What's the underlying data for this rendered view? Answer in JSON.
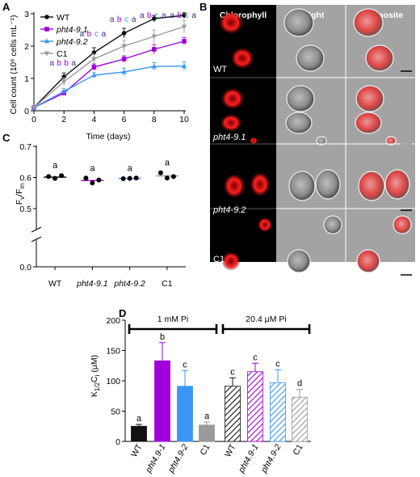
{
  "panel_letters": [
    "A",
    "B",
    "C",
    "D"
  ],
  "colors": {
    "WT": "#111111",
    "pht4-9.1": "#a100dc",
    "pht4-9.2": "#3a97f5",
    "C1": "#9a9a9a",
    "letter_a": "#3a2a8a",
    "letter_b": "#a100dc",
    "letter_c": "#3a97f5"
  },
  "chart_data": [
    {
      "panel": "A",
      "type": "line",
      "x": [
        0,
        2,
        4,
        6,
        8,
        10
      ],
      "xlabel": "Time (days)",
      "ylabel": "Cell count (10⁶ cells mL⁻¹)",
      "xlim": [
        0,
        10
      ],
      "ylim": [
        0,
        3
      ],
      "xticks": [
        "0",
        "2",
        "4",
        "6",
        "8",
        "10"
      ],
      "yticks": [
        "0",
        "1",
        "2",
        "3"
      ],
      "legend_position": "top-left",
      "series": [
        {
          "name": "WT",
          "marker": "circle",
          "values": [
            0.1,
            1.05,
            1.8,
            2.4,
            2.85,
            2.95
          ],
          "errors": [
            0.03,
            0.12,
            0.15,
            0.15,
            0.1,
            0.08
          ]
        },
        {
          "name": "pht4-9.1",
          "marker": "square",
          "values": [
            0.1,
            0.55,
            1.35,
            1.6,
            1.9,
            2.15
          ],
          "errors": [
            0.03,
            0.06,
            0.1,
            0.1,
            0.15,
            0.12
          ]
        },
        {
          "name": "pht4-9.2",
          "marker": "triangle",
          "values": [
            0.1,
            0.6,
            1.1,
            1.2,
            1.37,
            1.38
          ],
          "errors": [
            0.03,
            0.08,
            0.08,
            0.12,
            0.12,
            0.13
          ]
        },
        {
          "name": "C1",
          "marker": "triangle-down",
          "values": [
            0.1,
            0.9,
            1.6,
            2.0,
            2.3,
            2.6
          ],
          "errors": [
            0.03,
            0.12,
            0.15,
            0.18,
            0.2,
            0.2
          ]
        }
      ],
      "significance": [
        {
          "day": 2,
          "letters": [
            "a",
            "b",
            "b",
            "a"
          ],
          "y": 1.4
        },
        {
          "day": 4,
          "letters": [
            "a",
            "b",
            "c",
            "a"
          ],
          "y": 2.3
        },
        {
          "day": 6,
          "letters": [
            "a",
            "b",
            "c",
            "a"
          ],
          "y": 2.75
        },
        {
          "day": 8,
          "letters": [
            "a",
            "b",
            "c",
            "a"
          ],
          "y": 3.15
        },
        {
          "day": 10,
          "letters": [
            "a",
            "b",
            "c",
            "a"
          ],
          "y": 3.15
        }
      ]
    },
    {
      "panel": "C",
      "type": "scatter",
      "ylabel_main": "F",
      "ylabel_sub1": "v",
      "ylabel_slash": "/F",
      "ylabel_sub2": "m",
      "ylim": [
        0,
        0.7
      ],
      "yticks": [
        "0.0",
        "0.5",
        "0.6",
        "0.7"
      ],
      "axis_break": true,
      "categories": [
        "WT",
        "pht4-9.1",
        "pht4-9.2",
        "C1"
      ],
      "points": [
        [
          0.603,
          0.597,
          0.606
        ],
        [
          0.598,
          0.582,
          0.592
        ],
        [
          0.596,
          0.597,
          0.598
        ],
        [
          0.615,
          0.598,
          0.603
        ]
      ],
      "means": [
        0.601,
        0.59,
        0.597,
        0.605
      ],
      "letters": [
        "a",
        "a",
        "a",
        "a"
      ]
    },
    {
      "panel": "D",
      "type": "bar",
      "ylabel_main": "K",
      "ylabel_sub": "1/2",
      "ylabel_rest": "C",
      "ylabel_sub2": "i",
      "ylabel_unit": " (μM)",
      "ylim": [
        0,
        200
      ],
      "yticks": [
        "0",
        "50",
        "100",
        "150",
        "200"
      ],
      "categories": [
        "WT",
        "pht4.9-1",
        "pht4.9-2",
        "C1",
        "WT",
        "pht4.9-1",
        "pht4.9-2",
        "C1"
      ],
      "values": [
        25,
        133,
        91,
        27,
        91,
        115,
        97,
        73
      ],
      "errors": [
        3,
        30,
        26,
        5,
        14,
        14,
        21,
        13
      ],
      "letters": [
        "a",
        "b",
        "c",
        "a",
        "c",
        "c",
        "c",
        "d"
      ],
      "hatched": [
        false,
        false,
        false,
        false,
        true,
        true,
        true,
        true
      ],
      "groups": [
        {
          "label": "1 mM Pi",
          "from": 0,
          "to": 3
        },
        {
          "label": "20.4 μM Pi",
          "from": 4,
          "to": 7
        }
      ]
    }
  ],
  "micrographs": {
    "headers": [
      "Chlorophyll",
      "Bright",
      "Composite"
    ],
    "rows": [
      {
        "label": "WT",
        "italic": false
      },
      {
        "label": "pht4-9.1",
        "italic": true
      },
      {
        "label": "pht4-9.2",
        "italic": true
      },
      {
        "label": "C1",
        "italic": false
      }
    ]
  }
}
